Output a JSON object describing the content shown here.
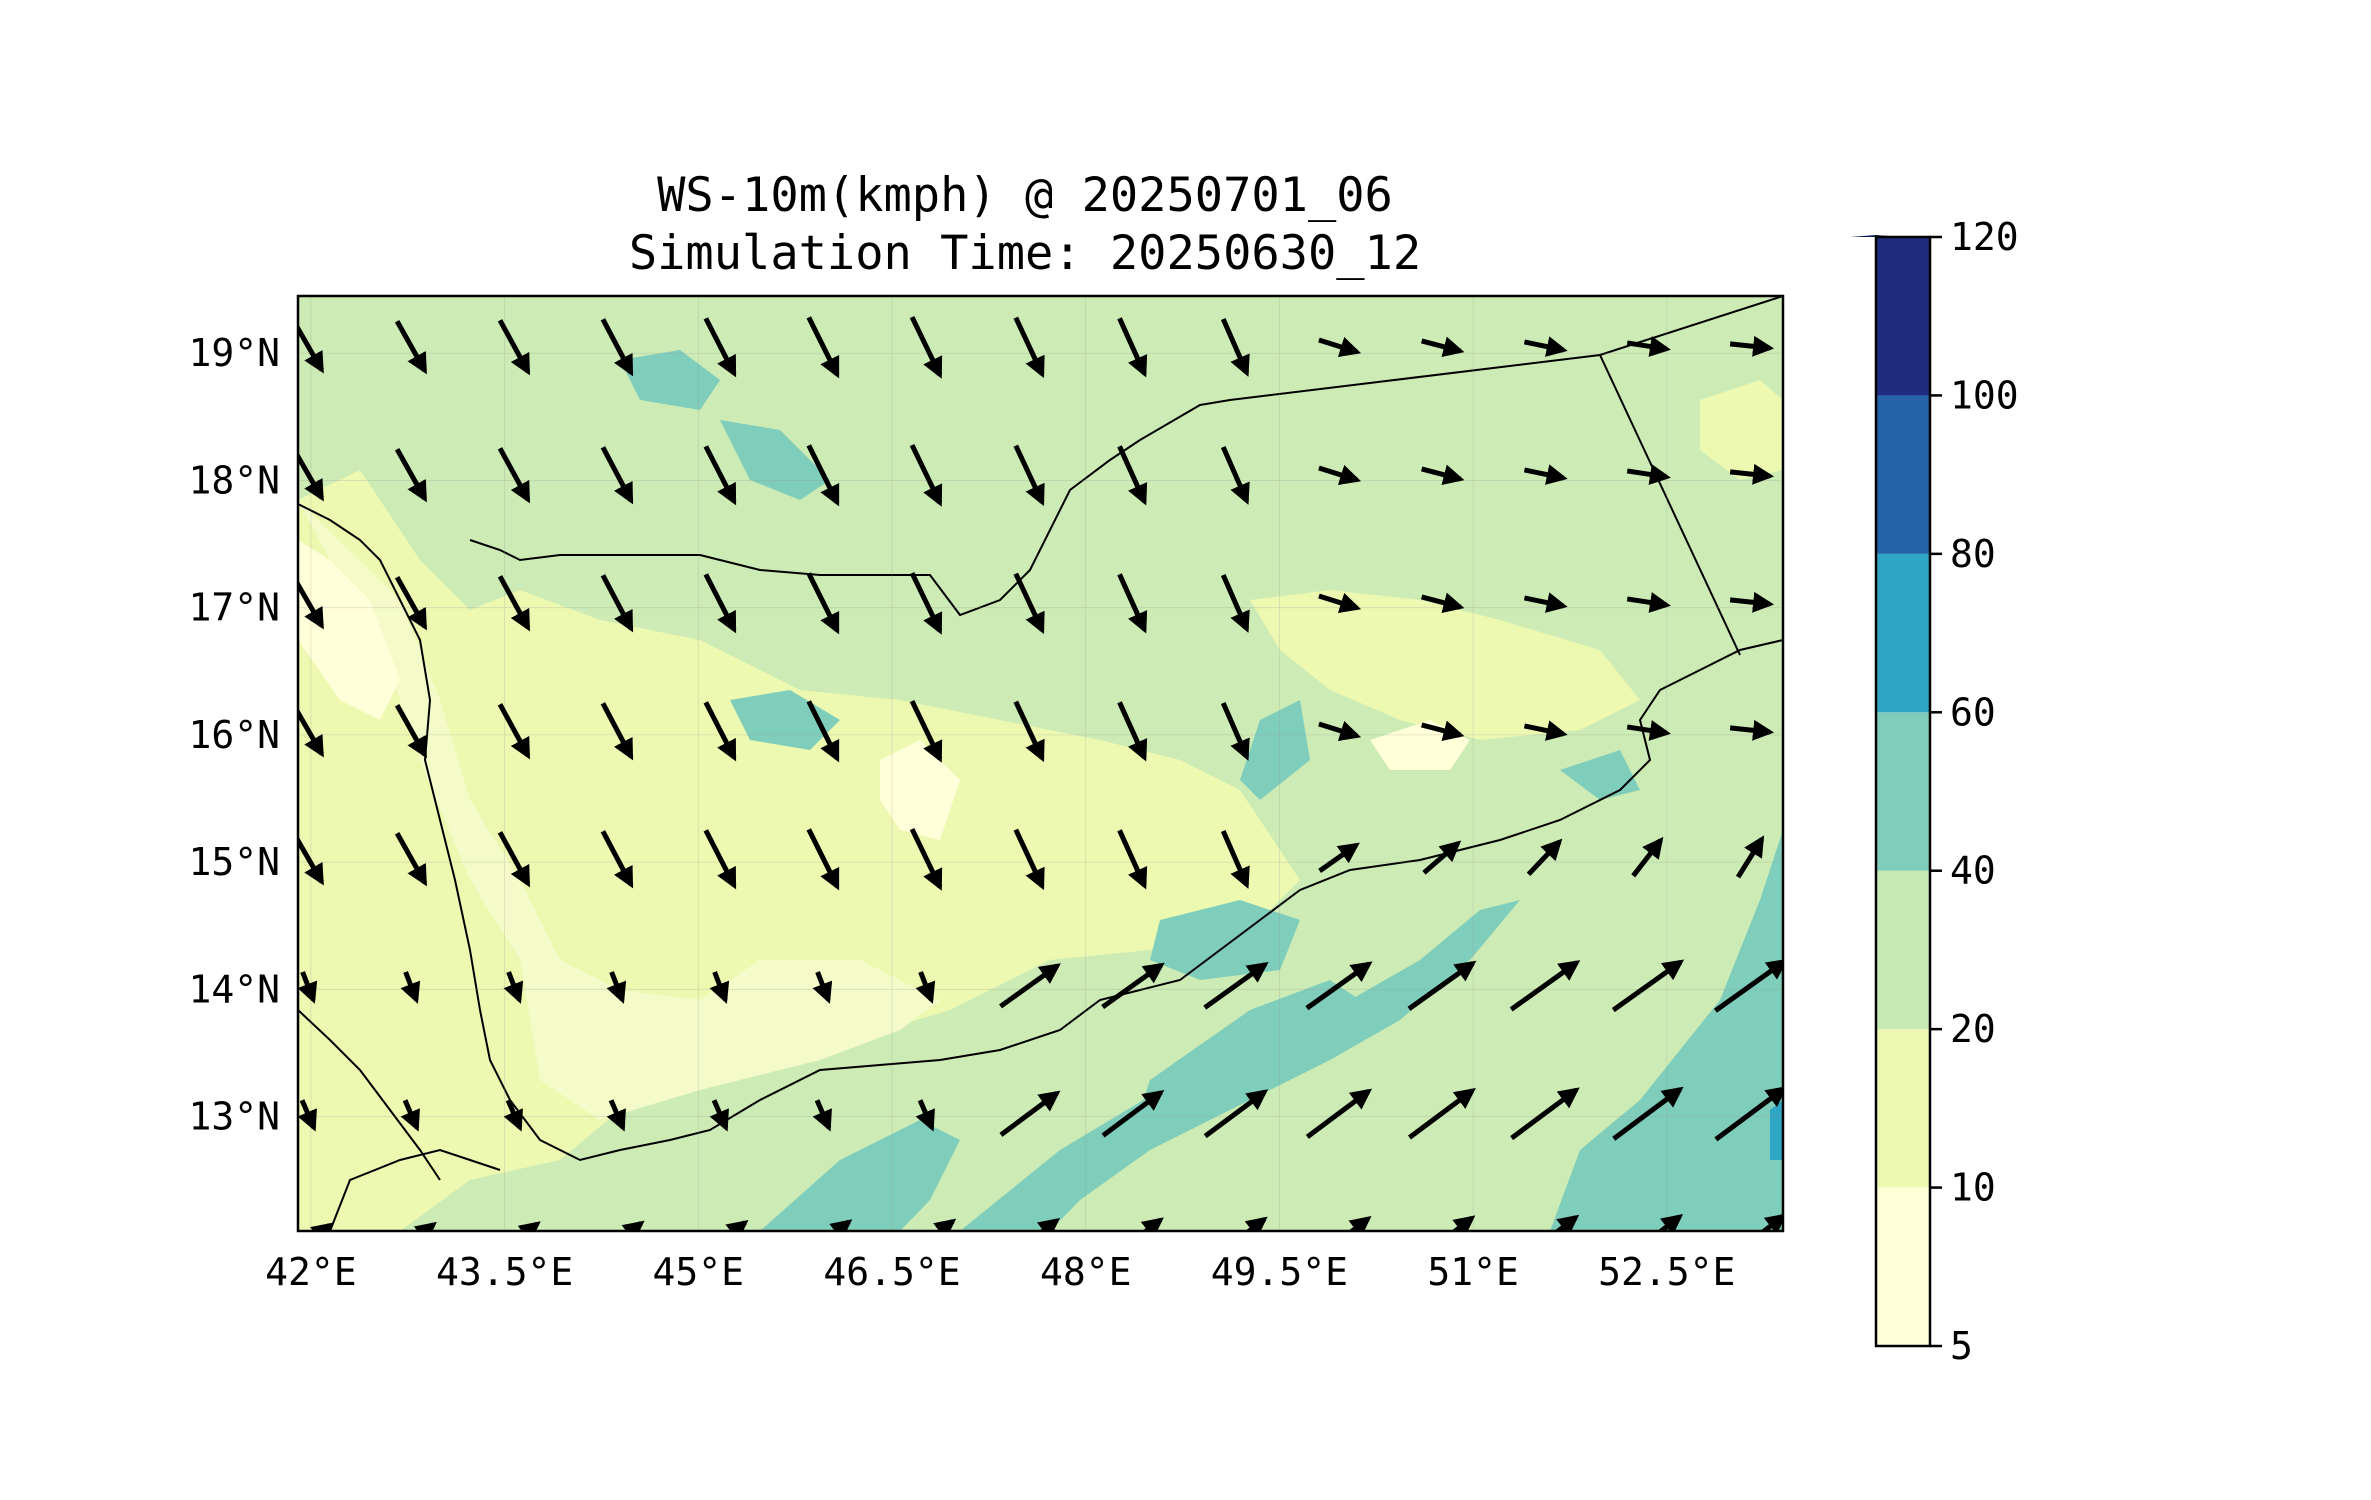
{
  "title": {
    "line1": "WS-10m(kmph) @ 20250701_06",
    "line2": "Simulation Time: 20250630_12"
  },
  "map": {
    "projection": "PlateCarree",
    "lon_range": [
      41.9,
      53.4
    ],
    "lat_range": [
      12.1,
      19.45
    ],
    "x_ticks": [
      "42°E",
      "43.5°E",
      "45°E",
      "46.5°E",
      "48°E",
      "49.5°E",
      "51°E",
      "52.5°E"
    ],
    "y_ticks": [
      "19°N",
      "18°N",
      "17°N",
      "16°N",
      "15°N",
      "14°N",
      "13°N"
    ],
    "gridlines": true,
    "features": [
      "coastline",
      "country-borders",
      "wind-vectors",
      "filled-contours"
    ]
  },
  "colorbar": {
    "levels": [
      "5",
      "10",
      "20",
      "40",
      "60",
      "80",
      "100",
      "120"
    ],
    "colors": [
      "#ffffd9",
      "#edf8b1",
      "#c7e9b4",
      "#7fcdbb",
      "#2ea6c4",
      "#2463a8",
      "#1f2d80"
    ],
    "extend_color": "#081d58",
    "extend": "max"
  }
}
